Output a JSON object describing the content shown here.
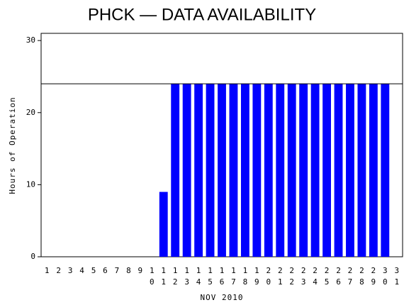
{
  "chart_data": {
    "type": "bar",
    "title": "PHCK — DATA AVAILABILITY",
    "y_label": "Hours of Operation",
    "x_label": "NOV 2010",
    "categories": [
      "1",
      "2",
      "3",
      "4",
      "5",
      "6",
      "7",
      "8",
      "9",
      "10",
      "11",
      "12",
      "13",
      "14",
      "15",
      "16",
      "17",
      "18",
      "19",
      "20",
      "21",
      "22",
      "23",
      "24",
      "25",
      "26",
      "27",
      "28",
      "29",
      "30",
      "31"
    ],
    "values": [
      0,
      0,
      0,
      0,
      0,
      0,
      0,
      0,
      0,
      0,
      9,
      24,
      24,
      24,
      24,
      24,
      24,
      24,
      24,
      24,
      24,
      24,
      24,
      24,
      24,
      24,
      24,
      24,
      24,
      24,
      0
    ],
    "color": "#0000ff",
    "reference_line": 24,
    "ylim": [
      0,
      31
    ],
    "yticks": [
      0,
      10,
      20,
      30
    ],
    "grid": false
  }
}
